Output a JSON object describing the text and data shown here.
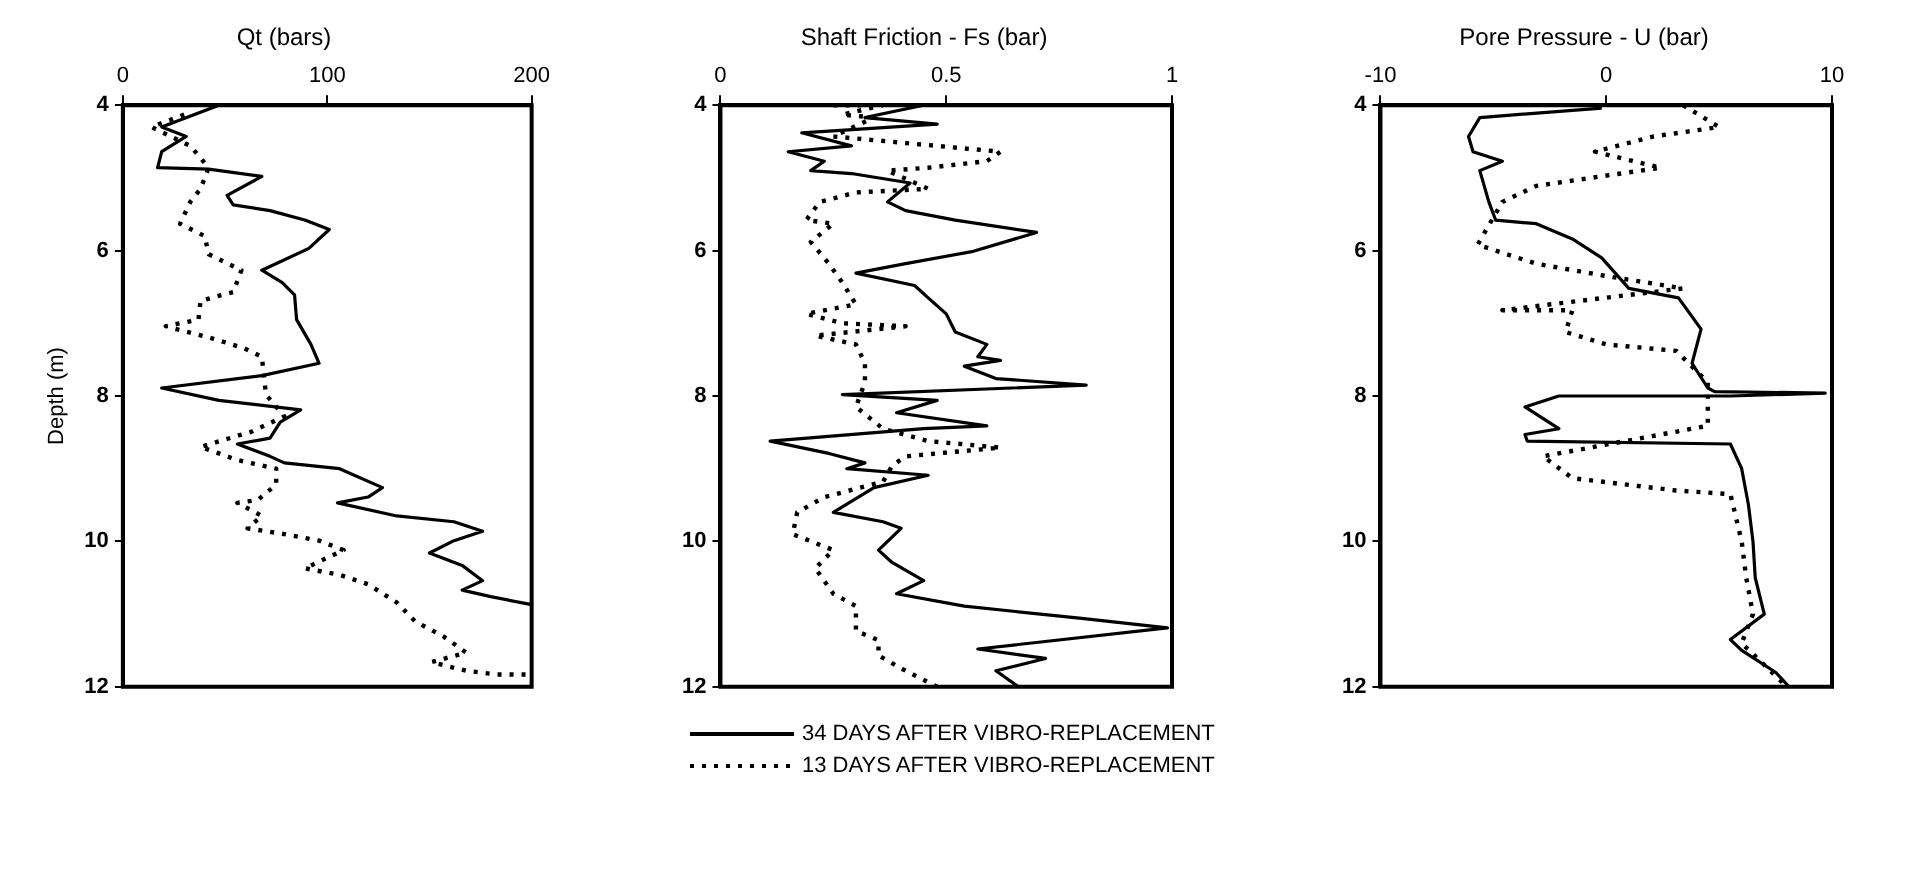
{
  "chart_data": [
    {
      "type": "line",
      "title": "Qt (bars)",
      "ylabel": "Depth (m)",
      "xlim": [
        0,
        200
      ],
      "xticks": [
        0,
        100,
        200
      ],
      "ylim": [
        12,
        4
      ],
      "yticks": [
        4,
        6,
        8,
        10,
        12
      ],
      "grid": false,
      "legend": "bottom",
      "marker": "none",
      "series": [
        {
          "name": "34 DAYS AFTER VIBRO-REPLACEMENT",
          "color": "#000000",
          "line_style": "solid",
          "x": [
            47,
            19,
            31,
            19,
            17,
            42,
            68,
            51,
            54,
            72,
            89,
            101,
            91,
            68,
            78,
            84,
            85,
            92,
            96,
            68,
            19,
            47,
            87,
            77,
            72,
            56,
            72,
            79,
            106,
            127,
            120,
            105,
            134,
            162,
            176,
            162,
            150,
            166,
            176,
            166,
            180,
            200
          ],
          "values": [
            4.0,
            4.3,
            4.43,
            4.64,
            4.86,
            4.88,
            4.98,
            5.24,
            5.37,
            5.45,
            5.58,
            5.71,
            5.97,
            6.27,
            6.44,
            6.61,
            6.95,
            7.29,
            7.55,
            7.72,
            7.89,
            8.06,
            8.19,
            8.36,
            8.58,
            8.66,
            8.83,
            8.92,
            9.0,
            9.26,
            9.39,
            9.47,
            9.65,
            9.73,
            9.86,
            9.99,
            10.16,
            10.33,
            10.54,
            10.67,
            10.76,
            10.87
          ]
        },
        {
          "name": "13 DAYS AFTER VIBRO-REPLACEMENT",
          "color": "#000000",
          "line_style": "dotted",
          "x": [
            30,
            14,
            33,
            42,
            38,
            33,
            28,
            40,
            42,
            58,
            54,
            38,
            37,
            21,
            44,
            59,
            68,
            70,
            79,
            63,
            38,
            56,
            75,
            75,
            66,
            56,
            68,
            61,
            79,
            96,
            108,
            89,
            106,
            120,
            134,
            143,
            157,
            168,
            151,
            168,
            183,
            200
          ],
          "values": [
            4.13,
            4.3,
            4.56,
            4.86,
            5.15,
            5.33,
            5.63,
            5.8,
            6.05,
            6.27,
            6.57,
            6.69,
            6.95,
            7.04,
            7.21,
            7.34,
            7.46,
            7.98,
            8.28,
            8.49,
            8.7,
            8.88,
            9.0,
            9.22,
            9.43,
            9.47,
            9.65,
            9.82,
            9.9,
            9.99,
            10.12,
            10.37,
            10.46,
            10.59,
            10.84,
            11.1,
            11.31,
            11.53,
            11.66,
            11.78,
            11.83,
            11.83
          ]
        }
      ]
    },
    {
      "type": "line",
      "title": "Shaft Friction - Fs (bar)",
      "xlim": [
        0,
        1
      ],
      "xticks": [
        0,
        0.5,
        1
      ],
      "ylim": [
        12,
        4
      ],
      "yticks": [
        4,
        6,
        8,
        10,
        12
      ],
      "grid": false,
      "marker": "none",
      "series": [
        {
          "color": "#000000",
          "line_style": "solid",
          "x": [
            0.45,
            0.32,
            0.48,
            0.18,
            0.29,
            0.15,
            0.23,
            0.2,
            0.29,
            0.42,
            0.37,
            0.41,
            0.52,
            0.7,
            0.56,
            0.41,
            0.3,
            0.43,
            0.46,
            0.5,
            0.52,
            0.59,
            0.57,
            0.62,
            0.54,
            0.61,
            0.81,
            0.27,
            0.48,
            0.39,
            0.59,
            0.45,
            0.11,
            0.24,
            0.32,
            0.28,
            0.46,
            0.34,
            0.25,
            0.36,
            0.4,
            0.35,
            0.38,
            0.45,
            0.39,
            0.54,
            0.8,
            0.99,
            0.57,
            0.72,
            0.61,
            0.66
          ],
          "values": [
            4.0,
            4.17,
            4.26,
            4.38,
            4.56,
            4.64,
            4.77,
            4.9,
            4.94,
            5.07,
            5.33,
            5.45,
            5.58,
            5.75,
            6.01,
            6.18,
            6.31,
            6.48,
            6.65,
            6.87,
            7.12,
            7.29,
            7.46,
            7.51,
            7.59,
            7.76,
            7.85,
            7.98,
            8.06,
            8.23,
            8.41,
            8.45,
            8.62,
            8.79,
            8.92,
            9.0,
            9.09,
            9.26,
            9.6,
            9.73,
            9.82,
            10.12,
            10.29,
            10.54,
            10.72,
            10.89,
            11.06,
            11.19,
            11.48,
            11.61,
            11.78,
            12.0
          ]
        },
        {
          "color": "#000000",
          "line_style": "dotted",
          "x": [
            0.25,
            0.36,
            0.27,
            0.34,
            0.25,
            0.48,
            0.62,
            0.59,
            0.46,
            0.37,
            0.46,
            0.3,
            0.22,
            0.19,
            0.25,
            0.2,
            0.24,
            0.27,
            0.3,
            0.19,
            0.27,
            0.41,
            0.21,
            0.3,
            0.32,
            0.32,
            0.3,
            0.36,
            0.46,
            0.62,
            0.41,
            0.38,
            0.36,
            0.23,
            0.17,
            0.16,
            0.25,
            0.21,
            0.25,
            0.3,
            0.3,
            0.35,
            0.35,
            0.41,
            0.48
          ],
          "values": [
            4.0,
            4.0,
            4.13,
            4.17,
            4.43,
            4.56,
            4.64,
            4.77,
            4.86,
            4.9,
            5.15,
            5.2,
            5.33,
            5.58,
            5.63,
            5.88,
            6.18,
            6.44,
            6.74,
            6.87,
            7.0,
            7.04,
            7.17,
            7.29,
            7.55,
            7.81,
            8.15,
            8.45,
            8.62,
            8.71,
            8.83,
            8.96,
            9.18,
            9.39,
            9.6,
            9.9,
            10.12,
            10.37,
            10.72,
            10.89,
            11.23,
            11.36,
            11.57,
            11.78,
            12.0
          ]
        }
      ]
    },
    {
      "type": "line",
      "title": "Pore Pressure - U (bar)",
      "xlim": [
        -10,
        10
      ],
      "xticks": [
        -10,
        0,
        10
      ],
      "ylim": [
        12,
        4
      ],
      "yticks": [
        4,
        6,
        8,
        10,
        12
      ],
      "grid": false,
      "marker": "none",
      "series": [
        {
          "color": "#000000",
          "line_style": "solid",
          "x": [
            -0.2,
            -5.6,
            -6.1,
            -5.9,
            -4.6,
            -5.6,
            -5.2,
            -4.9,
            -3.1,
            -1.5,
            -0.2,
            1.0,
            3.2,
            4.2,
            3.8,
            4.5,
            4.8,
            9.7,
            5.5,
            -2.1,
            -3.6,
            -2.1,
            -3.6,
            -3.5,
            5.5,
            6.0,
            6.3,
            6.5,
            6.6,
            7.0,
            5.5,
            6.0,
            7.5,
            8.1
          ],
          "values": [
            4.04,
            4.17,
            4.43,
            4.64,
            4.77,
            4.9,
            5.33,
            5.58,
            5.63,
            5.84,
            6.1,
            6.52,
            6.65,
            7.08,
            7.55,
            7.89,
            7.94,
            7.96,
            8.0,
            8.0,
            8.15,
            8.45,
            8.53,
            8.62,
            8.66,
            9.0,
            9.5,
            10.0,
            10.5,
            11.0,
            11.35,
            11.5,
            11.8,
            12.0
          ]
        },
        {
          "color": "#000000",
          "line_style": "dotted",
          "x": [
            3.4,
            5.0,
            2.1,
            -0.5,
            2.4,
            -3.1,
            -4.6,
            -5.7,
            -3.1,
            0,
            3.4,
            -4.6,
            -1.5,
            -1.8,
            0,
            3.1,
            4.5,
            4.5,
            -2.8,
            -1.5,
            3.1,
            5.5,
            6.0,
            6.2,
            6.5,
            6.0,
            7.0,
            8.0
          ],
          "values": [
            4.0,
            4.3,
            4.43,
            4.64,
            4.86,
            5.11,
            5.33,
            5.92,
            6.18,
            6.35,
            6.52,
            6.82,
            6.82,
            7.12,
            7.29,
            7.38,
            7.81,
            8.41,
            8.83,
            9.13,
            9.3,
            9.35,
            10.0,
            10.5,
            11.0,
            11.4,
            11.7,
            12.0
          ]
        }
      ]
    }
  ]
}
